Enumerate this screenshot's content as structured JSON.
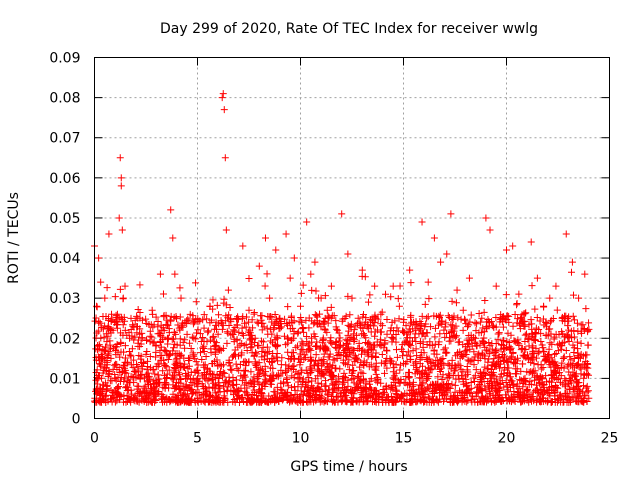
{
  "chart_data": {
    "type": "scatter",
    "title": "Day 299 of 2020, Rate Of TEC Index for receiver wwlg",
    "xlabel": "GPS time / hours",
    "ylabel": "ROTI / TECUs",
    "xlim": [
      0,
      25
    ],
    "ylim": [
      0,
      0.09
    ],
    "x_ticks": [
      0,
      5,
      10,
      15,
      20,
      25
    ],
    "y_ticks": [
      "0",
      "0.01",
      "0.02",
      "0.03",
      "0.04",
      "0.05",
      "0.06",
      "0.07",
      "0.08",
      "0.09"
    ],
    "grid": true,
    "marker": "plus",
    "series": [
      {
        "color": "#ff0000",
        "x": [
          0.0,
          0.1,
          0.2,
          0.25,
          0.3,
          0.45,
          0.5,
          0.6,
          0.7,
          0.8,
          0.9,
          1.0,
          1.2,
          1.25,
          1.3,
          1.3,
          1.35,
          1.4,
          1.5,
          1.7,
          1.9,
          2.1,
          2.3,
          2.5,
          2.8,
          3.0,
          3.2,
          3.4,
          3.7,
          3.8,
          3.9,
          4.0,
          4.2,
          4.5,
          4.8,
          5.0,
          5.3,
          5.6,
          5.8,
          6.0,
          6.2,
          6.25,
          6.3,
          6.35,
          6.4,
          6.5,
          6.8,
          7.0,
          7.2,
          7.5,
          7.8,
          8.0,
          8.3,
          8.5,
          8.8,
          9.0,
          9.3,
          9.5,
          9.7,
          10.0,
          10.3,
          10.5,
          10.7,
          11.0,
          11.3,
          11.5,
          11.8,
          12.0,
          12.3,
          12.5,
          12.8,
          13.0,
          13.3,
          13.6,
          13.9,
          14.2,
          14.5,
          14.8,
          15.0,
          15.3,
          15.6,
          15.9,
          16.2,
          16.5,
          16.8,
          17.1,
          17.3,
          17.6,
          17.9,
          18.2,
          18.5,
          18.8,
          19.0,
          19.2,
          19.5,
          19.8,
          20.0,
          20.3,
          20.6,
          20.9,
          21.2,
          21.5,
          21.8,
          22.1,
          22.4,
          22.7,
          22.9,
          23.2,
          23.5,
          23.8
        ],
        "y": [
          0.043,
          0.028,
          0.04,
          0.018,
          0.034,
          0.012,
          0.03,
          0.008,
          0.046,
          0.015,
          0.022,
          0.01,
          0.05,
          0.065,
          0.06,
          0.058,
          0.047,
          0.03,
          0.012,
          0.02,
          0.009,
          0.025,
          0.011,
          0.016,
          0.027,
          0.013,
          0.036,
          0.009,
          0.052,
          0.045,
          0.036,
          0.015,
          0.03,
          0.01,
          0.024,
          0.012,
          0.018,
          0.028,
          0.011,
          0.021,
          0.08,
          0.081,
          0.077,
          0.065,
          0.047,
          0.032,
          0.016,
          0.012,
          0.043,
          0.027,
          0.02,
          0.038,
          0.045,
          0.03,
          0.042,
          0.025,
          0.046,
          0.035,
          0.04,
          0.028,
          0.049,
          0.036,
          0.039,
          0.03,
          0.027,
          0.033,
          0.022,
          0.051,
          0.041,
          0.03,
          0.025,
          0.037,
          0.029,
          0.033,
          0.026,
          0.021,
          0.033,
          0.028,
          0.024,
          0.037,
          0.022,
          0.049,
          0.034,
          0.045,
          0.039,
          0.041,
          0.051,
          0.032,
          0.027,
          0.035,
          0.02,
          0.025,
          0.05,
          0.047,
          0.033,
          0.025,
          0.042,
          0.043,
          0.031,
          0.023,
          0.044,
          0.035,
          0.028,
          0.03,
          0.033,
          0.025,
          0.046,
          0.039,
          0.03,
          0.036
        ]
      }
    ]
  }
}
